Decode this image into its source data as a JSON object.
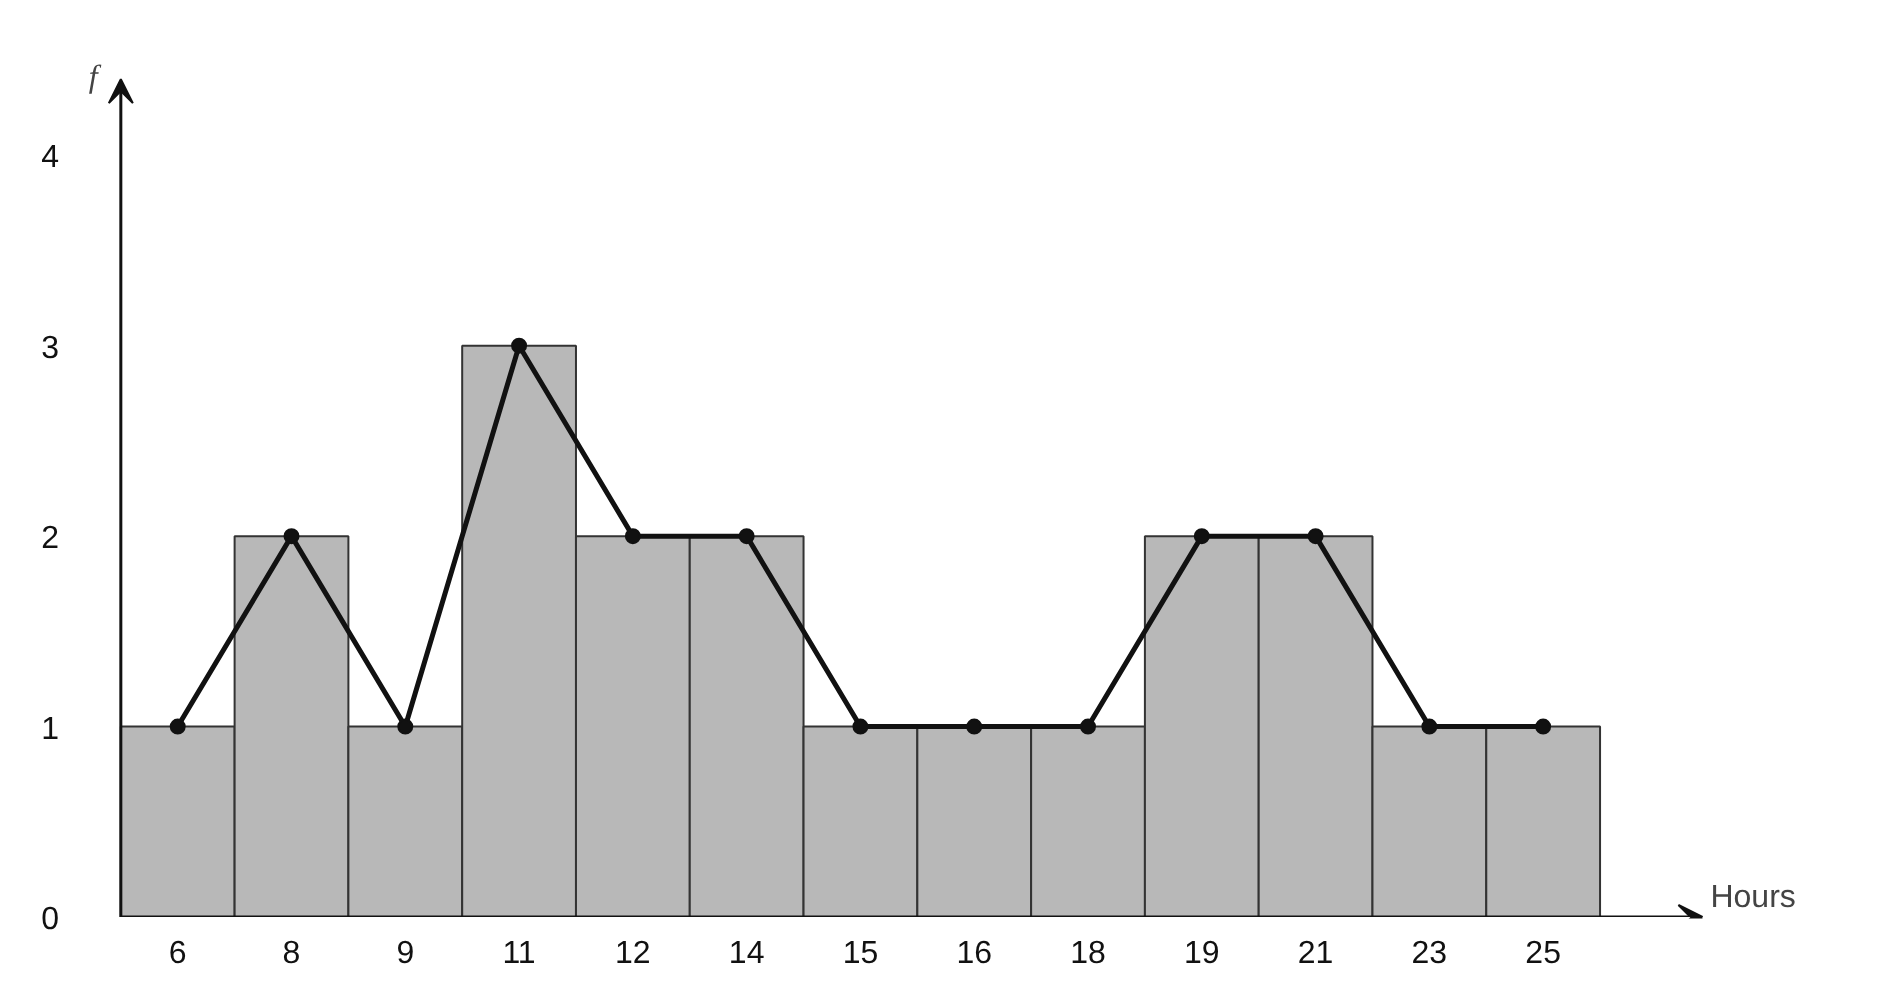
{
  "chart_data": {
    "type": "bar",
    "xlabel": "Hours",
    "ylabel": "f",
    "categories": [
      "6",
      "8",
      "9",
      "11",
      "12",
      "14",
      "15",
      "16",
      "18",
      "19",
      "21",
      "23",
      "25"
    ],
    "series": [
      {
        "color": "#b8b8b8",
        "values": [
          1,
          2,
          1,
          3,
          2,
          2,
          1,
          1,
          1,
          2,
          2,
          1,
          1
        ]
      },
      {
        "type": "line",
        "color": "#111111",
        "values": [
          1,
          2,
          1,
          3,
          2,
          2,
          1,
          1,
          1,
          2,
          2,
          1,
          1
        ],
        "marker": "circle",
        "line_style": "solid"
      }
    ],
    "ylim": [
      0,
      4.4
    ],
    "yticks": [
      0,
      1,
      2,
      3,
      4
    ],
    "grid": false
  }
}
